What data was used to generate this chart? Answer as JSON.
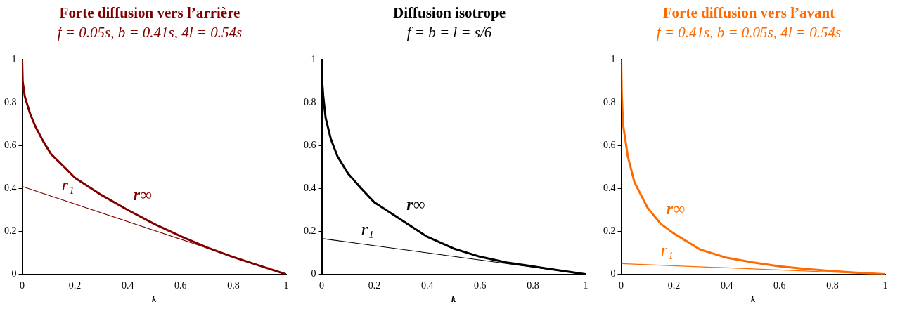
{
  "chart_data": [
    {
      "type": "line",
      "title": "Forte diffusion vers l’arrière",
      "subtitle": "f = 0.05s, b = 0.41s, 4l = 0.54s",
      "xlabel": "k",
      "xlim": [
        0,
        1
      ],
      "ylim": [
        0,
        1
      ],
      "xticks": [
        0,
        0.2,
        0.4,
        0.6,
        0.8,
        1
      ],
      "yticks": [
        0,
        0.2,
        0.4,
        0.6,
        0.8,
        1
      ],
      "grid": false,
      "legend": false,
      "marker": "none",
      "line_style": "solid",
      "series": [
        {
          "name": "r∞",
          "color": "#800000",
          "x": [
            0,
            0.002,
            0.01,
            0.03,
            0.05,
            0.08,
            0.11,
            0.16,
            0.2,
            0.3,
            0.4,
            0.5,
            0.6,
            0.7,
            0.8,
            0.9,
            1
          ],
          "values": [
            1,
            0.9,
            0.83,
            0.75,
            0.69,
            0.62,
            0.56,
            0.5,
            0.45,
            0.37,
            0.3,
            0.235,
            0.178,
            0.125,
            0.08,
            0.04,
            0
          ]
        },
        {
          "name": "r₁",
          "color": "#800000",
          "x": [
            0,
            1
          ],
          "values": [
            0.41,
            0
          ]
        }
      ]
    },
    {
      "type": "line",
      "title": "Diffusion isotrope",
      "subtitle": "f = b = l = s/6",
      "xlabel": "k",
      "xlim": [
        0,
        1
      ],
      "ylim": [
        0,
        1
      ],
      "xticks": [
        0,
        0.2,
        0.4,
        0.6,
        0.8,
        1
      ],
      "yticks": [
        0,
        0.2,
        0.4,
        0.6,
        0.8,
        1
      ],
      "grid": false,
      "legend": false,
      "marker": "none",
      "line_style": "solid",
      "series": [
        {
          "name": "r∞",
          "color": "#000000",
          "x": [
            0,
            0.002,
            0.006,
            0.015,
            0.035,
            0.06,
            0.1,
            0.15,
            0.2,
            0.3,
            0.4,
            0.5,
            0.6,
            0.7,
            0.8,
            0.9,
            1
          ],
          "values": [
            1,
            0.9,
            0.83,
            0.73,
            0.63,
            0.55,
            0.47,
            0.4,
            0.335,
            0.255,
            0.175,
            0.12,
            0.082,
            0.055,
            0.037,
            0.018,
            0
          ]
        },
        {
          "name": "r₁",
          "color": "#000000",
          "x": [
            0,
            1
          ],
          "values": [
            0.167,
            0
          ]
        }
      ]
    },
    {
      "type": "line",
      "title": "Forte diffusion vers l’avant",
      "subtitle": "f = 0.41s, b = 0.05s, 4l = 0.54s",
      "xlabel": "k",
      "xlim": [
        0,
        1
      ],
      "ylim": [
        0,
        1
      ],
      "xticks": [
        0,
        0.2,
        0.4,
        0.6,
        0.8,
        1
      ],
      "yticks": [
        0,
        0.2,
        0.4,
        0.6,
        0.8,
        1
      ],
      "grid": false,
      "legend": false,
      "marker": "none",
      "line_style": "solid",
      "series": [
        {
          "name": "r∞",
          "color": "#ff6a00",
          "x": [
            0,
            0.002,
            0.007,
            0.025,
            0.05,
            0.1,
            0.15,
            0.2,
            0.3,
            0.4,
            0.5,
            0.6,
            0.7,
            0.8,
            0.9,
            1
          ],
          "values": [
            1,
            0.85,
            0.7,
            0.55,
            0.43,
            0.31,
            0.235,
            0.19,
            0.115,
            0.077,
            0.055,
            0.037,
            0.025,
            0.015,
            0.007,
            0
          ]
        },
        {
          "name": "r₁",
          "color": "#ff6a00",
          "x": [
            0,
            1
          ],
          "values": [
            0.05,
            0
          ]
        }
      ]
    }
  ]
}
